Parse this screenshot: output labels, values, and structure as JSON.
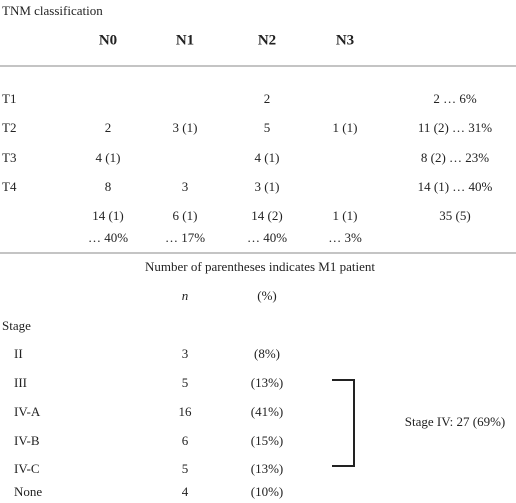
{
  "title": "TNM classification",
  "tnm": {
    "header": [
      "N0",
      "N1",
      "N2",
      "N3"
    ],
    "rows": [
      {
        "label": "T1",
        "cells": [
          null,
          null,
          "2",
          null
        ],
        "total": "2 … 6%"
      },
      {
        "label": "T2",
        "cells": [
          "2",
          "3 (1)",
          "5",
          "1 (1)"
        ],
        "total": "11 (2) … 31%"
      },
      {
        "label": "T3",
        "cells": [
          "4 (1)",
          null,
          "4 (1)",
          null
        ],
        "total": "8 (2) … 23%"
      },
      {
        "label": "T4",
        "cells": [
          "8",
          "3",
          "3 (1)",
          null
        ],
        "total": "14 (1) … 40%"
      }
    ],
    "totals": [
      {
        "count": "14 (1)",
        "pct": "… 40%"
      },
      {
        "count": "6 (1)",
        "pct": "… 17%"
      },
      {
        "count": "14 (2)",
        "pct": "… 40%"
      },
      {
        "count": "1 (1)",
        "pct": "… 3%"
      }
    ],
    "grand_total": "35 (5)"
  },
  "note": "Number of parentheses indicates M1 patient",
  "stage": {
    "columns": [
      "n",
      "(%)"
    ],
    "label": "Stage",
    "rows": [
      {
        "stage": "II",
        "n": "3",
        "pct": "(8%)"
      },
      {
        "stage": "III",
        "n": "5",
        "pct": "(13%)"
      },
      {
        "stage": "IV-A",
        "n": "16",
        "pct": "(41%)"
      },
      {
        "stage": "IV-B",
        "n": "6",
        "pct": "(15%)"
      },
      {
        "stage": "IV-C",
        "n": "5",
        "pct": "(13%)"
      },
      {
        "stage": "None",
        "n": "4",
        "pct": "(10%)"
      }
    ],
    "summary": "Stage IV: 27 (69%)"
  }
}
